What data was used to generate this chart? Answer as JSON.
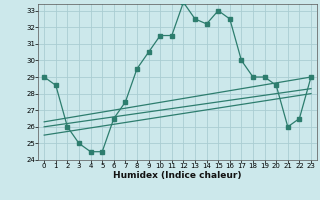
{
  "xlabel": "Humidex (Indice chaleur)",
  "line_color": "#2d7d6e",
  "bg_color": "#cce8eb",
  "grid_color": "#aacdd2",
  "xlim": [
    -0.5,
    23.5
  ],
  "ylim": [
    24,
    33.4
  ],
  "xticks": [
    0,
    1,
    2,
    3,
    4,
    5,
    6,
    7,
    8,
    9,
    10,
    11,
    12,
    13,
    14,
    15,
    16,
    17,
    18,
    19,
    20,
    21,
    22,
    23
  ],
  "yticks": [
    24,
    25,
    26,
    27,
    28,
    29,
    30,
    31,
    32,
    33
  ],
  "main_x": [
    0,
    1,
    2,
    3,
    4,
    5,
    6,
    7,
    8,
    9,
    10,
    11,
    12,
    13,
    14,
    15,
    16,
    17,
    18,
    19,
    20,
    21,
    22,
    23
  ],
  "main_y": [
    29.0,
    28.5,
    26.0,
    25.0,
    24.5,
    24.5,
    26.5,
    27.5,
    29.5,
    30.5,
    31.5,
    31.5,
    33.5,
    32.5,
    32.2,
    33.0,
    32.5,
    30.0,
    29.0,
    29.0,
    28.5,
    26.0,
    26.5,
    29.0
  ],
  "trend1_x": [
    0,
    23
  ],
  "trend1_y": [
    26.3,
    29.0
  ],
  "trend2_x": [
    0,
    23
  ],
  "trend2_y": [
    26.0,
    28.3
  ],
  "trend3_x": [
    0,
    23
  ],
  "trend3_y": [
    25.5,
    28.0
  ]
}
